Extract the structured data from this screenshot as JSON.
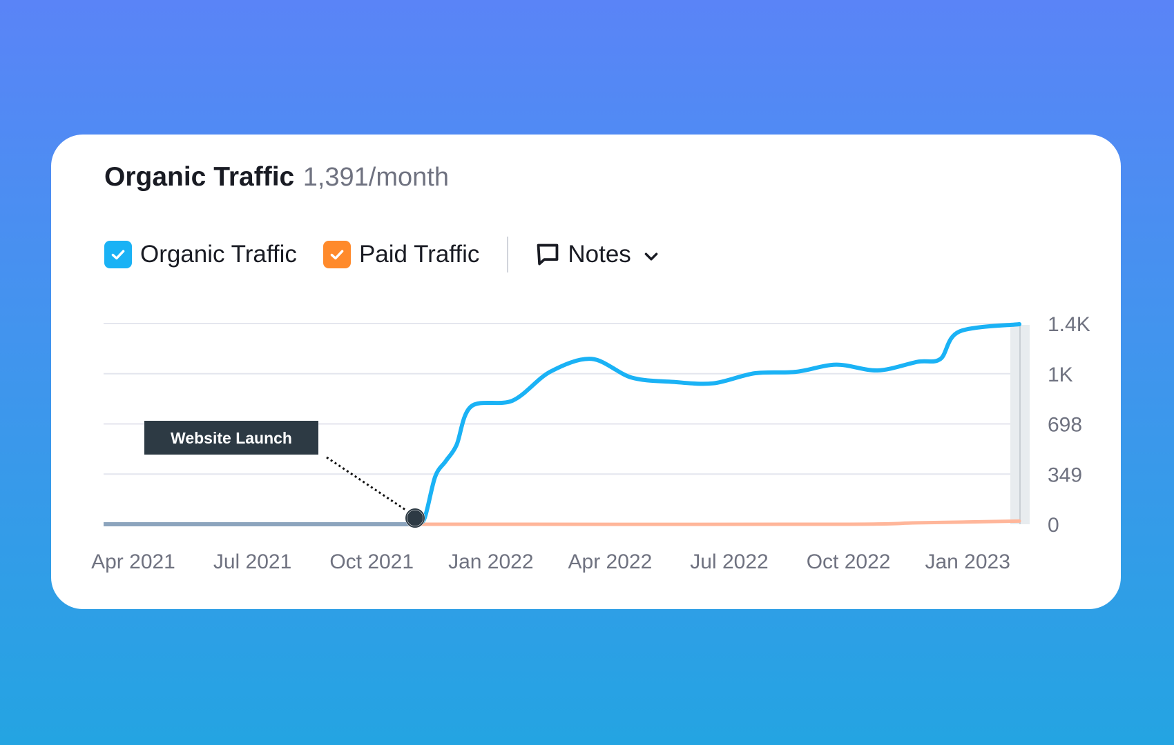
{
  "header": {
    "title": "Organic Traffic",
    "value": "1,391/month"
  },
  "legend": {
    "items": [
      {
        "label": "Organic Traffic",
        "color": "#1ab2f5",
        "checked": true,
        "icon": "checkmark-icon"
      },
      {
        "label": "Paid Traffic",
        "color": "#ff8a2b",
        "checked": true,
        "icon": "checkmark-icon"
      }
    ],
    "notes": {
      "label": "Notes",
      "icon": "comment-icon",
      "dropdown_icon": "chevron-down-icon"
    }
  },
  "colors": {
    "background_top": "#5a84f7",
    "background_bottom": "#24a4e2",
    "organic": "#1ab2f5",
    "paid": "#ffb69a",
    "gridline": "#e4e6ee",
    "annotation_bg": "#2d3a44"
  },
  "chart_data": {
    "type": "line",
    "title": "",
    "x_ticks": [
      "Apr 2021",
      "Jul 2021",
      "Oct 2021",
      "Jan 2022",
      "Apr 2022",
      "Jul 2022",
      "Oct 2022",
      "Jan 2023"
    ],
    "y_ticks": [
      "0",
      "349",
      "698",
      "1K",
      "1.4K"
    ],
    "y_tick_values": [
      0,
      349,
      698,
      1047,
      1396
    ],
    "ylim": [
      0,
      1396
    ],
    "xlim": [
      "2021-04-01",
      "2023-02-15"
    ],
    "y_axis_position": "right",
    "grid": true,
    "annotation": {
      "label": "Website Launch",
      "date": "2021-11-20",
      "value": 40
    },
    "series": [
      {
        "name": "Organic Traffic",
        "points": [
          {
            "date": "2021-04-01",
            "value": 0
          },
          {
            "date": "2021-11-20",
            "value": 0
          },
          {
            "date": "2021-11-27",
            "value": 40
          },
          {
            "date": "2021-12-05",
            "value": 330
          },
          {
            "date": "2021-12-13",
            "value": 440
          },
          {
            "date": "2021-12-21",
            "value": 550
          },
          {
            "date": "2022-01-01",
            "value": 820
          },
          {
            "date": "2022-02-01",
            "value": 860
          },
          {
            "date": "2022-03-01",
            "value": 1060
          },
          {
            "date": "2022-04-01",
            "value": 1150
          },
          {
            "date": "2022-05-01",
            "value": 1020
          },
          {
            "date": "2022-06-01",
            "value": 990
          },
          {
            "date": "2022-07-01",
            "value": 980
          },
          {
            "date": "2022-08-01",
            "value": 1050
          },
          {
            "date": "2022-09-01",
            "value": 1060
          },
          {
            "date": "2022-10-01",
            "value": 1110
          },
          {
            "date": "2022-11-01",
            "value": 1070
          },
          {
            "date": "2022-12-01",
            "value": 1130
          },
          {
            "date": "2022-12-18",
            "value": 1150
          },
          {
            "date": "2023-01-01",
            "value": 1340
          },
          {
            "date": "2023-02-15",
            "value": 1391
          }
        ]
      },
      {
        "name": "Paid Traffic",
        "points": [
          {
            "date": "2021-11-20",
            "value": 0
          },
          {
            "date": "2022-10-01",
            "value": 0
          },
          {
            "date": "2022-12-01",
            "value": 10
          },
          {
            "date": "2023-02-15",
            "value": 22
          }
        ]
      }
    ]
  }
}
